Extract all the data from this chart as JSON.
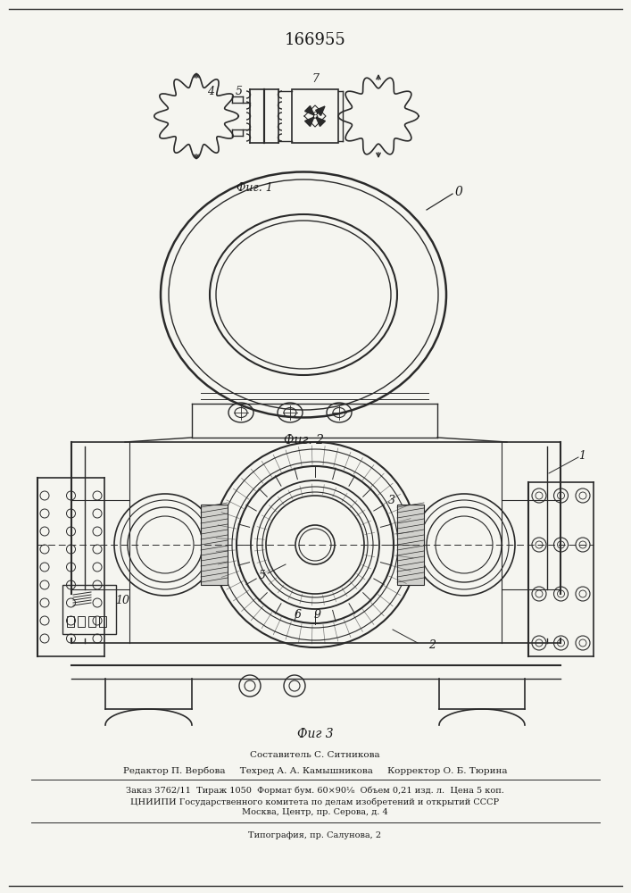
{
  "title": "166955",
  "fig1_label": "Фиг. 1",
  "fig2_label": "Фиг. 2",
  "fig3_label": "Фиг 3",
  "composer_line": "Составитель С. Ситникова",
  "editor_line": "Редактор П. Вербова     Техред А. А. Камышникова     Корректор О. Б. Тюрина",
  "order_line": "Заказ 3762/11  Тираж 1050  Формат бум. 60×90⅛  Объем 0,21 изд. л.  Цена 5 коп.",
  "org_line1": "ЦНИИПИ Государственного комитета по делам изобретений и открытий СССР",
  "org_line2": "Москва, Центр, пр. Серова, д. 4",
  "print_line": "Типография, пр. Салунова, 2",
  "bg_color": "#f5f5f0",
  "line_color": "#2a2a2a",
  "text_color": "#1a1a1a"
}
